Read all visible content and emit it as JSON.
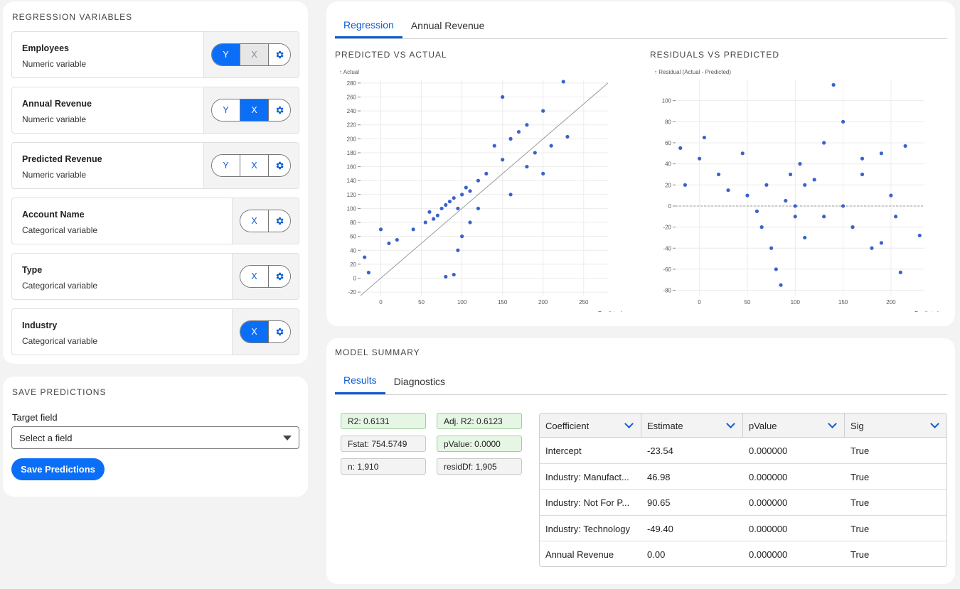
{
  "variables": {
    "title": "REGRESSION VARIABLES",
    "items": [
      {
        "name": "Employees",
        "type": "Numeric variable",
        "y": "Y",
        "x": "X",
        "mode": "Y"
      },
      {
        "name": "Annual Revenue",
        "type": "Numeric variable",
        "y": "Y",
        "x": "X",
        "mode": "X"
      },
      {
        "name": "Predicted Revenue",
        "type": "Numeric variable",
        "y": "Y",
        "x": "X",
        "mode": "none"
      },
      {
        "name": "Account Name",
        "type": "Categorical variable",
        "x": "X",
        "mode": "none"
      },
      {
        "name": "Type",
        "type": "Categorical variable",
        "x": "X",
        "mode": "none"
      },
      {
        "name": "Industry",
        "type": "Categorical variable",
        "x": "X",
        "mode": "X"
      }
    ]
  },
  "save": {
    "title": "SAVE PREDICTIONS",
    "target_label": "Target field",
    "select_value": "Select a field",
    "button_label": "Save Predictions"
  },
  "charts": {
    "tabs": [
      "Regression",
      "Annual Revenue"
    ],
    "active_tab": "Regression",
    "left_title": "PREDICTED VS ACTUAL",
    "right_title": "RESIDUALS VS PREDICTED",
    "point_color": "#3b62cc"
  },
  "chart_data": [
    {
      "type": "scatter",
      "title": "PREDICTED VS ACTUAL",
      "xlabel": "Predicted →",
      "ylabel": "↑ Actual",
      "xlim": [
        -25,
        280
      ],
      "ylim": [
        -25,
        285
      ],
      "xticks": [
        0,
        50,
        100,
        150,
        200,
        250
      ],
      "yticks": [
        -20,
        0,
        20,
        40,
        60,
        80,
        100,
        120,
        140,
        160,
        180,
        200,
        220,
        240,
        260,
        280
      ],
      "grid": true,
      "reference_line": "y = x",
      "points_approx": [
        [
          -20,
          30
        ],
        [
          -15,
          8
        ],
        [
          0,
          70
        ],
        [
          10,
          50
        ],
        [
          20,
          55
        ],
        [
          40,
          70
        ],
        [
          55,
          80
        ],
        [
          60,
          95
        ],
        [
          65,
          85
        ],
        [
          70,
          90
        ],
        [
          75,
          100
        ],
        [
          80,
          105
        ],
        [
          85,
          110
        ],
        [
          90,
          115
        ],
        [
          95,
          100
        ],
        [
          100,
          120
        ],
        [
          105,
          130
        ],
        [
          110,
          125
        ],
        [
          120,
          140
        ],
        [
          130,
          150
        ],
        [
          140,
          190
        ],
        [
          150,
          170
        ],
        [
          160,
          200
        ],
        [
          170,
          210
        ],
        [
          180,
          220
        ],
        [
          190,
          180
        ],
        [
          200,
          240
        ],
        [
          210,
          190
        ],
        [
          225,
          282
        ],
        [
          230,
          203
        ],
        [
          80,
          2
        ],
        [
          90,
          5
        ],
        [
          95,
          40
        ],
        [
          100,
          60
        ],
        [
          110,
          80
        ],
        [
          120,
          100
        ],
        [
          150,
          260
        ],
        [
          160,
          120
        ],
        [
          180,
          160
        ],
        [
          200,
          150
        ]
      ]
    },
    {
      "type": "scatter",
      "title": "RESIDUALS VS PREDICTED",
      "xlabel": "Predicted →",
      "ylabel": "↑ Residual (Actual - Predicted)",
      "xlim": [
        -25,
        235
      ],
      "ylim": [
        -85,
        120
      ],
      "xticks": [
        0,
        50,
        100,
        150,
        200
      ],
      "yticks": [
        -80,
        -60,
        -40,
        -20,
        0,
        20,
        40,
        60,
        80,
        100
      ],
      "grid": true,
      "reference_line": "y = 0",
      "points_approx": [
        [
          -20,
          55
        ],
        [
          -15,
          20
        ],
        [
          0,
          45
        ],
        [
          5,
          65
        ],
        [
          20,
          30
        ],
        [
          30,
          15
        ],
        [
          45,
          50
        ],
        [
          50,
          10
        ],
        [
          60,
          -5
        ],
        [
          65,
          -20
        ],
        [
          70,
          20
        ],
        [
          75,
          -40
        ],
        [
          80,
          -60
        ],
        [
          85,
          -75
        ],
        [
          90,
          5
        ],
        [
          95,
          30
        ],
        [
          100,
          -10
        ],
        [
          105,
          40
        ],
        [
          110,
          -30
        ],
        [
          120,
          25
        ],
        [
          130,
          60
        ],
        [
          140,
          115
        ],
        [
          150,
          80
        ],
        [
          160,
          -20
        ],
        [
          170,
          30
        ],
        [
          180,
          -40
        ],
        [
          190,
          50
        ],
        [
          200,
          10
        ],
        [
          210,
          -63
        ],
        [
          215,
          57
        ],
        [
          230,
          -28
        ],
        [
          100,
          0
        ],
        [
          110,
          20
        ],
        [
          130,
          -10
        ],
        [
          150,
          0
        ],
        [
          170,
          45
        ],
        [
          190,
          -35
        ],
        [
          205,
          -10
        ]
      ]
    }
  ],
  "model": {
    "title": "MODEL SUMMARY",
    "tabs": [
      "Results",
      "Diagnostics"
    ],
    "active_tab": "Results",
    "stats": {
      "r2": "R2: 0.6131",
      "adj_r2": "Adj. R2: 0.6123",
      "fstat": "Fstat: 754.5749",
      "pvalue": "pValue: 0.0000",
      "n": "n: 1,910",
      "residdf": "residDf: 1,905"
    },
    "table": {
      "headers": [
        "Coefficient",
        "Estimate",
        "pValue",
        "Sig"
      ],
      "rows": [
        [
          "Intercept",
          "-23.54",
          "0.000000",
          "True"
        ],
        [
          "Industry: Manufact...",
          "46.98",
          "0.000000",
          "True"
        ],
        [
          "Industry: Not For P...",
          "90.65",
          "0.000000",
          "True"
        ],
        [
          "Industry: Technology",
          "-49.40",
          "0.000000",
          "True"
        ],
        [
          "Annual Revenue",
          "0.00",
          "0.000000",
          "True"
        ]
      ]
    }
  }
}
